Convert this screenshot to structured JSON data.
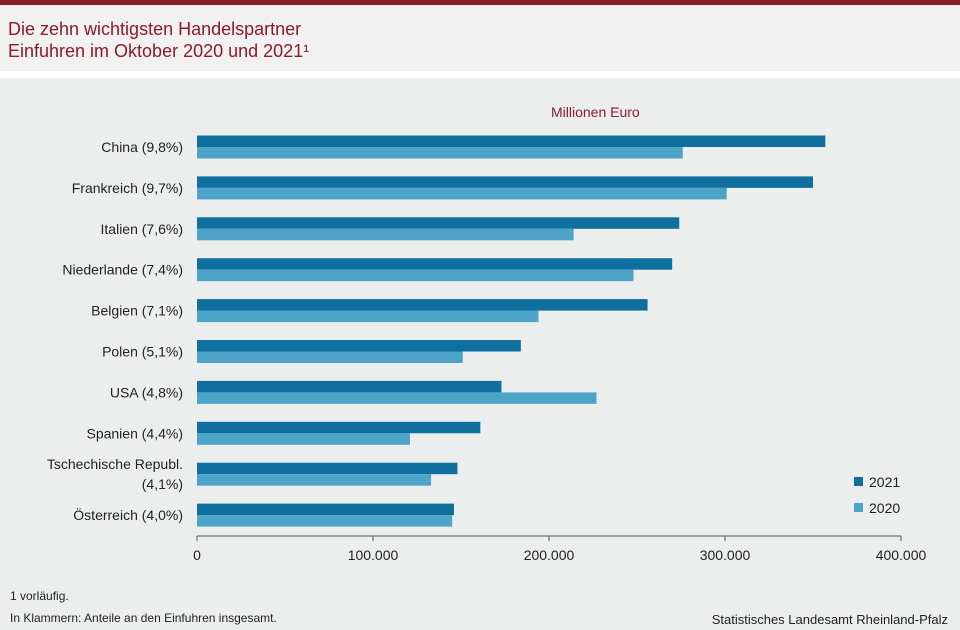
{
  "title": {
    "line1": "Die zehn wichtigsten Handelspartner",
    "line2": "Einfuhren im Oktober 2020 und 2021¹"
  },
  "unit_label": "Millionen  Euro",
  "footnotes": {
    "note1": "1 vorläufig.",
    "note2": "In Klammern:  Anteile  an den  Einfuhren  insgesamt."
  },
  "source": "Statistisches Landesamt Rheinland-Pfalz",
  "colors": {
    "series_2021": "#0f6f9f",
    "series_2020": "#4ea3c8",
    "title": "#8b1a2b"
  },
  "chart_data": {
    "type": "bar",
    "orientation": "horizontal",
    "categories": [
      "China (9,8%)",
      "Frankreich (9,7%)",
      "Italien (7,6%)",
      "Niederlande (7,4%)",
      "Belgien (7,1%)",
      "Polen (5,1%)",
      "USA (4,8%)",
      "Spanien (4,4%)",
      "Tschechische Republ. (4,1%)",
      "Österreich (4,0%)"
    ],
    "category_lines": [
      [
        "China (9,8%)"
      ],
      [
        "Frankreich (9,7%)"
      ],
      [
        "Italien (7,6%)"
      ],
      [
        "Niederlande (7,4%)"
      ],
      [
        "Belgien (7,1%)"
      ],
      [
        "Polen (5,1%)"
      ],
      [
        "USA (4,8%)"
      ],
      [
        "Spanien (4,4%)"
      ],
      [
        "Tschechische Republ.",
        "(4,1%)"
      ],
      [
        "Österreich (4,0%)"
      ]
    ],
    "series": [
      {
        "name": "2021",
        "values": [
          357000,
          350000,
          274000,
          270000,
          256000,
          184000,
          173000,
          161000,
          148000,
          146000
        ]
      },
      {
        "name": "2020",
        "values": [
          276000,
          301000,
          214000,
          248000,
          194000,
          151000,
          227000,
          121000,
          133000,
          145000
        ]
      }
    ],
    "xlim": [
      0,
      400000
    ],
    "x_ticks": [
      0,
      100000,
      200000,
      300000,
      400000
    ],
    "x_tick_labels": [
      "0",
      "100.000",
      "200.000",
      "300.000",
      "400.000"
    ],
    "xlabel": "",
    "ylabel": "",
    "grid": false,
    "legend": "bottom-right"
  }
}
